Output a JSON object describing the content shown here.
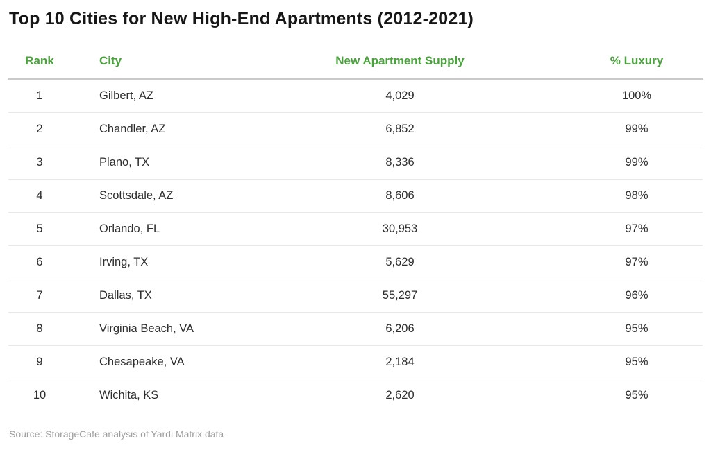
{
  "title": "Top 10 Cities for New High-End Apartments (2012-2021)",
  "source_note": "Source: StorageCafe analysis of Yardi Matrix data",
  "colors": {
    "accent_green": "#4aa23c",
    "title_text": "#161616",
    "body_text": "#2d2d2d",
    "header_border": "#c9c9c9",
    "row_border": "#eaeaea",
    "source_text": "#9e9e9e",
    "background": "#ffffff"
  },
  "chart_data": {
    "type": "table",
    "title": "Top 10 Cities for New High-End Apartments (2012-2021)",
    "columns": [
      "Rank",
      "City",
      "New Apartment Supply",
      "% Luxury"
    ],
    "column_alignments": [
      "center",
      "left",
      "center",
      "center"
    ],
    "rows": [
      {
        "rank": "1",
        "city": "Gilbert, AZ",
        "supply": "4,029",
        "luxury": "100%"
      },
      {
        "rank": "2",
        "city": "Chandler, AZ",
        "supply": "6,852",
        "luxury": "99%"
      },
      {
        "rank": "3",
        "city": "Plano, TX",
        "supply": "8,336",
        "luxury": "99%"
      },
      {
        "rank": "4",
        "city": "Scottsdale, AZ",
        "supply": "8,606",
        "luxury": "98%"
      },
      {
        "rank": "5",
        "city": "Orlando, FL",
        "supply": "30,953",
        "luxury": "97%"
      },
      {
        "rank": "6",
        "city": "Irving, TX",
        "supply": "5,629",
        "luxury": "97%"
      },
      {
        "rank": "7",
        "city": "Dallas, TX",
        "supply": "55,297",
        "luxury": "96%"
      },
      {
        "rank": "8",
        "city": "Virginia Beach, VA",
        "supply": "6,206",
        "luxury": "95%"
      },
      {
        "rank": "9",
        "city": "Chesapeake, VA",
        "supply": "2,184",
        "luxury": "95%"
      },
      {
        "rank": "10",
        "city": "Wichita, KS",
        "supply": "2,620",
        "luxury": "95%"
      }
    ]
  }
}
